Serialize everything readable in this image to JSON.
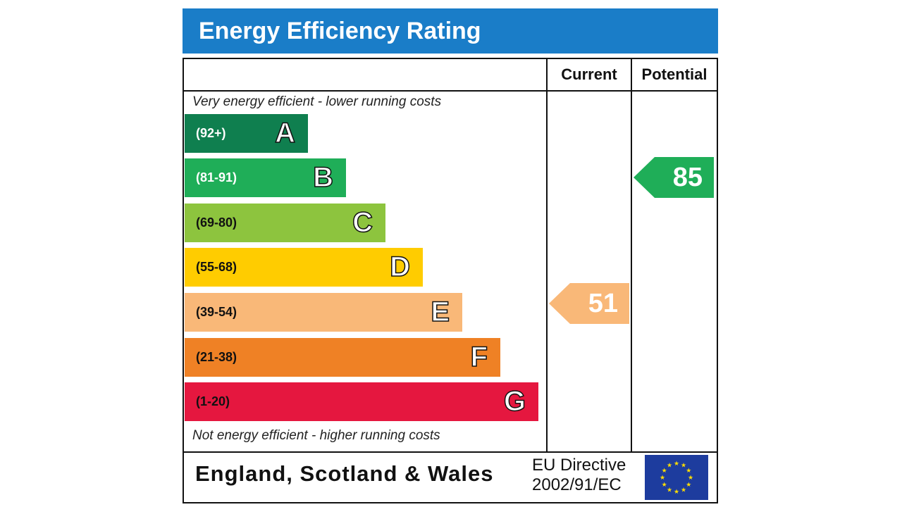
{
  "title": "Energy Efficiency Rating",
  "columns": {
    "current": "Current",
    "potential": "Potential"
  },
  "top_note": "Very energy efficient - lower running costs",
  "bottom_note": "Not energy efficient - higher running costs",
  "footer": {
    "region": "England, Scotland & Wales",
    "directive_line1": "EU Directive",
    "directive_line2": "2002/91/EC",
    "flag_icon": "eu-flag-icon"
  },
  "chart_data": {
    "type": "bar",
    "bands": [
      {
        "letter": "A",
        "range": "(92+)",
        "color": "#0f7f4f",
        "text_color": "#ffffff"
      },
      {
        "letter": "B",
        "range": "(81-91)",
        "color": "#1fae58",
        "text_color": "#ffffff"
      },
      {
        "letter": "C",
        "range": "(69-80)",
        "color": "#8dc43e",
        "text_color": "#111111"
      },
      {
        "letter": "D",
        "range": "(55-68)",
        "color": "#ffcc00",
        "text_color": "#111111"
      },
      {
        "letter": "E",
        "range": "(39-54)",
        "color": "#f9b878",
        "text_color": "#111111"
      },
      {
        "letter": "F",
        "range": "(21-38)",
        "color": "#ef8125",
        "text_color": "#111111"
      },
      {
        "letter": "G",
        "range": "(1-20)",
        "color": "#e5173f",
        "text_color": "#111111"
      }
    ],
    "current": {
      "value": "51",
      "band": "E",
      "color": "#f9b878"
    },
    "potential": {
      "value": "85",
      "band": "B",
      "color": "#1fae58"
    }
  }
}
